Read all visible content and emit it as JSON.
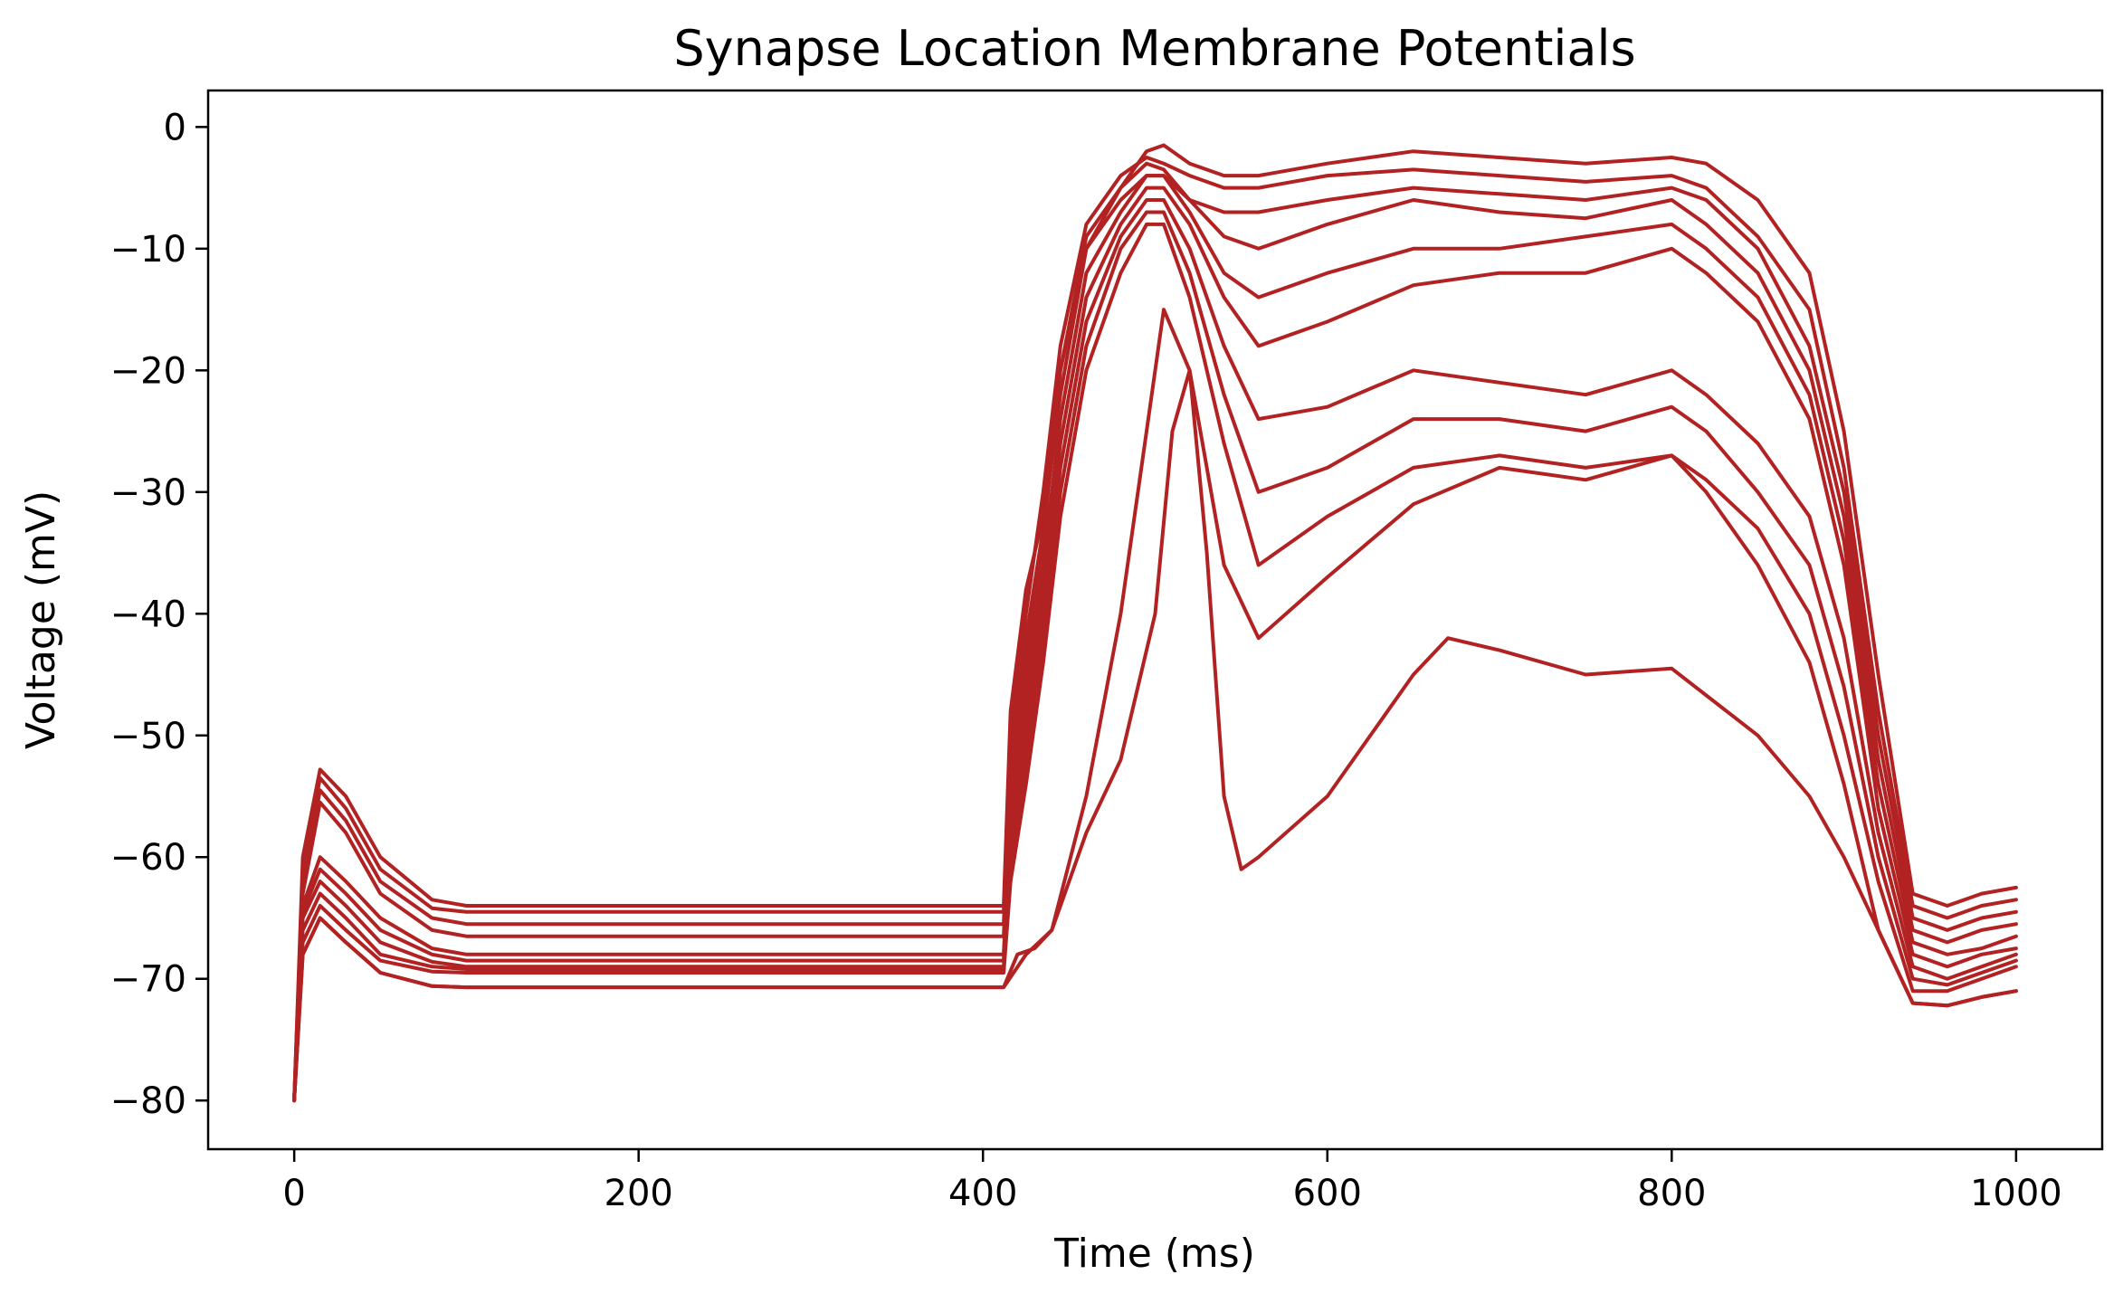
{
  "chart_data": {
    "type": "line",
    "title": "Synapse Location Membrane Potentials",
    "xlabel": "Time (ms)",
    "ylabel": "Voltage (mV)",
    "xlim": [
      -50,
      1050
    ],
    "ylim": [
      -84,
      3
    ],
    "x_ticks": [
      {
        "value": 0,
        "label": "0"
      },
      {
        "value": 200,
        "label": "200"
      },
      {
        "value": 400,
        "label": "400"
      },
      {
        "value": 600,
        "label": "600"
      },
      {
        "value": 800,
        "label": "800"
      },
      {
        "value": 1000,
        "label": "1000"
      }
    ],
    "y_ticks": [
      {
        "value": 0,
        "label": "0"
      },
      {
        "value": -10,
        "label": "−10"
      },
      {
        "value": -20,
        "label": "−20"
      },
      {
        "value": -30,
        "label": "−30"
      },
      {
        "value": -40,
        "label": "−40"
      },
      {
        "value": -50,
        "label": "−50"
      },
      {
        "value": -60,
        "label": "−60"
      },
      {
        "value": -70,
        "label": "−70"
      },
      {
        "value": -80,
        "label": "−80"
      }
    ],
    "grid": false,
    "legend": "none",
    "line_color": "#b22222",
    "series": [
      {
        "x": [
          0,
          5,
          15,
          30,
          50,
          80,
          100,
          200,
          300,
          412,
          416,
          425,
          435,
          445,
          460,
          480,
          495,
          505,
          520,
          540,
          560,
          600,
          650,
          700,
          750,
          800,
          820,
          850,
          880,
          900,
          920,
          940,
          960,
          980,
          1000
        ],
        "y": [
          -80,
          -60,
          -52.8,
          -55,
          -60,
          -63.5,
          -64,
          -64,
          -64,
          -64,
          -48,
          -38,
          -32,
          -20,
          -10,
          -5,
          -2,
          -1.5,
          -3,
          -4,
          -4,
          -3,
          -2,
          -2.5,
          -3,
          -2.5,
          -3,
          -6,
          -12,
          -25,
          -45,
          -63,
          -64,
          -63,
          -62.5
        ]
      },
      {
        "x": [
          0,
          5,
          15,
          30,
          50,
          80,
          100,
          200,
          300,
          412,
          416,
          425,
          435,
          445,
          460,
          480,
          495,
          505,
          520,
          540,
          560,
          600,
          650,
          700,
          750,
          800,
          820,
          850,
          880,
          900,
          920,
          940,
          960,
          980,
          1000
        ],
        "y": [
          -80,
          -61,
          -53.5,
          -56,
          -61,
          -64.2,
          -64.5,
          -64.5,
          -64.5,
          -64.5,
          -50,
          -40,
          -30,
          -18,
          -8,
          -4,
          -2.5,
          -3,
          -4,
          -5,
          -5,
          -4,
          -3.5,
          -4,
          -4.5,
          -4,
          -5,
          -9,
          -15,
          -28,
          -48,
          -64,
          -65,
          -64,
          -63.5
        ]
      },
      {
        "x": [
          0,
          5,
          15,
          30,
          50,
          80,
          100,
          200,
          300,
          412,
          416,
          425,
          435,
          445,
          460,
          480,
          495,
          505,
          520,
          540,
          560,
          600,
          650,
          700,
          750,
          800,
          820,
          850,
          880,
          900,
          920,
          940,
          960,
          980,
          1000
        ],
        "y": [
          -80,
          -62,
          -54.5,
          -57,
          -62,
          -65,
          -65.5,
          -65.5,
          -65.5,
          -65.5,
          -52,
          -42,
          -33,
          -22,
          -10,
          -6,
          -4,
          -4,
          -6,
          -7,
          -7,
          -6,
          -5,
          -5.5,
          -6,
          -5,
          -6,
          -10,
          -18,
          -30,
          -50,
          -65,
          -66,
          -65,
          -64.5
        ]
      },
      {
        "x": [
          0,
          5,
          15,
          30,
          50,
          80,
          100,
          200,
          300,
          412,
          416,
          425,
          435,
          445,
          460,
          480,
          495,
          505,
          520,
          540,
          560,
          600,
          650,
          700,
          750,
          800,
          820,
          850,
          880,
          900,
          920,
          940,
          960,
          980,
          1000
        ],
        "y": [
          -80,
          -63,
          -55.5,
          -58,
          -63,
          -66,
          -66.5,
          -66.5,
          -66.5,
          -66.5,
          -54,
          -44,
          -34,
          -20,
          -9,
          -5,
          -3,
          -3.5,
          -6,
          -9,
          -10,
          -8,
          -6,
          -7,
          -7.5,
          -6,
          -8,
          -12,
          -20,
          -32,
          -52,
          -66,
          -67,
          -66,
          -65.5
        ]
      },
      {
        "x": [
          0,
          5,
          15,
          30,
          50,
          80,
          100,
          200,
          300,
          412,
          416,
          425,
          435,
          445,
          460,
          480,
          495,
          505,
          520,
          540,
          560,
          600,
          650,
          700,
          750,
          800,
          820,
          850,
          880,
          900,
          920,
          940,
          960,
          980,
          1000
        ],
        "y": [
          -80,
          -64,
          -60,
          -62,
          -65,
          -67.5,
          -68,
          -68,
          -68,
          -68,
          -56,
          -46,
          -36,
          -24,
          -12,
          -7,
          -4,
          -4,
          -7,
          -12,
          -14,
          -12,
          -10,
          -10,
          -9,
          -8,
          -10,
          -14,
          -22,
          -34,
          -54,
          -67,
          -68,
          -67.5,
          -66.5
        ]
      },
      {
        "x": [
          0,
          5,
          15,
          30,
          50,
          80,
          100,
          200,
          300,
          412,
          416,
          425,
          435,
          445,
          460,
          480,
          495,
          505,
          520,
          540,
          560,
          600,
          650,
          700,
          750,
          800,
          820,
          850,
          880,
          900,
          920,
          940,
          960,
          980,
          1000
        ],
        "y": [
          -80,
          -64.5,
          -61,
          -63,
          -66,
          -68,
          -68.5,
          -68.5,
          -68.5,
          -68.5,
          -58,
          -48,
          -38,
          -26,
          -14,
          -8,
          -5,
          -5,
          -8,
          -14,
          -18,
          -16,
          -13,
          -12,
          -12,
          -10,
          -12,
          -16,
          -24,
          -36,
          -56,
          -68,
          -69,
          -68,
          -67.5
        ]
      },
      {
        "x": [
          0,
          5,
          15,
          30,
          50,
          80,
          100,
          200,
          300,
          412,
          416,
          425,
          435,
          445,
          460,
          480,
          495,
          505,
          520,
          540,
          560,
          600,
          650,
          700,
          750,
          800,
          820,
          850,
          880,
          900,
          920,
          940,
          960,
          980,
          1000
        ],
        "y": [
          -80,
          -65,
          -62,
          -64,
          -67,
          -68.6,
          -69,
          -69,
          -69,
          -69,
          -60,
          -50,
          -40,
          -28,
          -16,
          -9,
          -6,
          -6,
          -10,
          -18,
          -24,
          -23,
          -20,
          -21,
          -22,
          -20,
          -22,
          -26,
          -32,
          -42,
          -58,
          -69,
          -70,
          -69,
          -68
        ]
      },
      {
        "x": [
          0,
          5,
          15,
          30,
          50,
          80,
          100,
          200,
          300,
          412,
          416,
          425,
          435,
          445,
          460,
          480,
          495,
          505,
          520,
          540,
          560,
          600,
          650,
          700,
          750,
          800,
          820,
          850,
          880,
          900,
          920,
          940,
          960,
          980,
          1000
        ],
        "y": [
          -80,
          -66,
          -63,
          -65,
          -68,
          -69,
          -69.2,
          -69.2,
          -69.2,
          -69.2,
          -61,
          -52,
          -42,
          -30,
          -18,
          -10,
          -7,
          -7,
          -12,
          -22,
          -30,
          -28,
          -24,
          -24,
          -25,
          -23,
          -25,
          -30,
          -36,
          -46,
          -60,
          -70,
          -70.5,
          -69.5,
          -68.5
        ]
      },
      {
        "x": [
          0,
          5,
          15,
          30,
          50,
          80,
          100,
          200,
          300,
          412,
          416,
          425,
          435,
          445,
          460,
          480,
          495,
          505,
          520,
          540,
          560,
          600,
          650,
          700,
          750,
          800,
          820,
          850,
          880,
          900,
          920,
          940,
          960,
          980,
          1000
        ],
        "y": [
          -80,
          -67,
          -64,
          -66,
          -68.5,
          -69.4,
          -69.5,
          -69.5,
          -69.5,
          -69.5,
          -62,
          -54,
          -44,
          -32,
          -20,
          -12,
          -8,
          -8,
          -14,
          -26,
          -36,
          -32,
          -28,
          -27,
          -28,
          -27,
          -29,
          -33,
          -40,
          -50,
          -62,
          -71,
          -71,
          -70,
          -69
        ]
      },
      {
        "x": [
          0,
          5,
          15,
          30,
          50,
          80,
          100,
          200,
          300,
          412,
          425,
          440,
          460,
          480,
          495,
          505,
          520,
          540,
          560,
          600,
          650,
          700,
          750,
          800,
          820,
          850,
          880,
          900,
          920,
          940,
          960,
          980,
          1000
        ],
        "y": [
          -80,
          -68,
          -65,
          -67,
          -69.5,
          -70.6,
          -70.7,
          -70.7,
          -70.7,
          -70.7,
          -68,
          -66,
          -55,
          -40,
          -25,
          -15,
          -20,
          -36,
          -42,
          -37,
          -31,
          -28,
          -29,
          -27,
          -30,
          -36,
          -44,
          -54,
          -66,
          -72,
          -72.2,
          -71.5,
          -71
        ]
      },
      {
        "x": [
          0,
          5,
          15,
          30,
          50,
          80,
          100,
          200,
          300,
          412,
          420,
          430,
          440,
          450,
          460,
          480,
          500,
          510,
          520,
          530,
          540,
          550,
          560,
          600,
          650,
          670,
          700,
          750,
          800,
          850,
          880,
          900,
          920,
          940,
          960,
          980,
          1000
        ],
        "y": [
          -80,
          -68,
          -65,
          -67,
          -69.5,
          -70.6,
          -70.7,
          -70.7,
          -70.7,
          -70.7,
          -68,
          -67.5,
          -66,
          -62,
          -58,
          -52,
          -40,
          -25,
          -20,
          -35,
          -55,
          -61,
          -60,
          -55,
          -45,
          -42,
          -43,
          -45,
          -44.5,
          -50,
          -55,
          -60,
          -66,
          -72,
          -72.2,
          -71.5,
          -71
        ]
      }
    ]
  }
}
